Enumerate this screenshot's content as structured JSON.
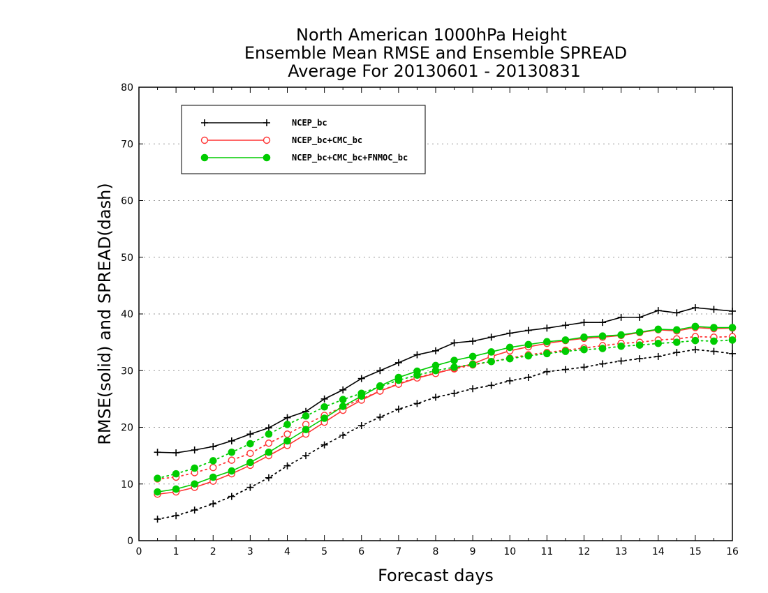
{
  "chart_data": {
    "type": "line",
    "title_lines": [
      "North American 1000hPa Height",
      "Ensemble Mean RMSE and Ensemble SPREAD",
      "Average For 20130601 - 20130831"
    ],
    "xlabel": "Forecast days",
    "ylabel": "RMSE(solid) and SPREAD(dash)",
    "xlim": [
      0,
      16
    ],
    "ylim": [
      0,
      80
    ],
    "xticks": [
      0,
      1,
      2,
      3,
      4,
      5,
      6,
      7,
      8,
      9,
      10,
      11,
      12,
      13,
      14,
      15,
      16
    ],
    "yticks": [
      0,
      10,
      20,
      30,
      40,
      50,
      60,
      70,
      80
    ],
    "grid": "horizontal dotted",
    "legend_position": "top-left",
    "x": [
      0.5,
      1,
      1.5,
      2,
      2.5,
      3,
      3.5,
      4,
      4.5,
      5,
      5.5,
      6,
      6.5,
      7,
      7.5,
      8,
      8.5,
      9,
      9.5,
      10,
      10.5,
      11,
      11.5,
      12,
      12.5,
      13,
      13.5,
      14,
      14.5,
      15,
      15.5,
      16
    ],
    "series": [
      {
        "name": "NCEP_bc",
        "color": "#000000",
        "marker": "plus",
        "rmse": [
          15.6,
          15.5,
          16.0,
          16.6,
          17.6,
          18.8,
          19.9,
          21.7,
          22.8,
          25.0,
          26.6,
          28.6,
          30.0,
          31.4,
          32.8,
          33.5,
          34.9,
          35.2,
          35.9,
          36.6,
          37.1,
          37.5,
          38.0,
          38.5,
          38.5,
          39.4,
          39.4,
          40.6,
          40.2,
          41.1,
          40.8,
          40.5
        ],
        "spread": [
          3.8,
          4.4,
          5.4,
          6.5,
          7.8,
          9.4,
          11.1,
          13.2,
          15.0,
          16.9,
          18.6,
          20.3,
          21.8,
          23.2,
          24.2,
          25.3,
          26.0,
          26.8,
          27.4,
          28.2,
          28.8,
          29.8,
          30.2,
          30.6,
          31.2,
          31.7,
          32.1,
          32.5,
          33.2,
          33.7,
          33.4,
          33.0
        ]
      },
      {
        "name": "NCEP_bc+CMC_bc",
        "color": "#ff3333",
        "marker": "open-circle",
        "rmse": [
          8.2,
          8.6,
          9.4,
          10.5,
          11.8,
          13.3,
          15.0,
          16.8,
          18.8,
          20.9,
          23.0,
          24.8,
          26.4,
          27.6,
          28.7,
          29.5,
          30.4,
          31.2,
          32.5,
          33.5,
          34.2,
          34.8,
          35.3,
          35.7,
          35.9,
          36.2,
          36.7,
          37.2,
          37.0,
          37.6,
          37.4,
          37.5
        ],
        "spread": [
          10.9,
          11.2,
          12.0,
          12.9,
          14.2,
          15.4,
          17.2,
          18.8,
          20.5,
          22.1,
          23.6,
          25.0,
          26.4,
          27.7,
          28.8,
          29.6,
          30.3,
          31.0,
          31.6,
          32.2,
          32.8,
          33.2,
          33.6,
          34.0,
          34.4,
          34.8,
          35.0,
          35.4,
          35.6,
          36.0,
          35.9,
          36.0
        ]
      },
      {
        "name": "NCEP_bc+CMC_bc+FNMOC_bc",
        "color": "#00cc00",
        "marker": "filled-circle",
        "rmse": [
          8.6,
          9.1,
          10.0,
          11.2,
          12.3,
          13.8,
          15.6,
          17.6,
          19.6,
          21.6,
          23.7,
          25.5,
          27.3,
          28.8,
          29.9,
          30.9,
          31.8,
          32.5,
          33.3,
          34.1,
          34.6,
          35.1,
          35.4,
          35.9,
          36.1,
          36.3,
          36.8,
          37.3,
          37.2,
          37.8,
          37.6,
          37.6
        ],
        "spread": [
          11.0,
          11.8,
          12.8,
          14.1,
          15.6,
          17.1,
          18.8,
          20.5,
          22.0,
          23.6,
          24.9,
          26.0,
          27.2,
          28.3,
          29.2,
          30.0,
          30.6,
          31.1,
          31.6,
          32.1,
          32.6,
          33.0,
          33.4,
          33.7,
          33.9,
          34.3,
          34.5,
          34.8,
          35.0,
          35.3,
          35.2,
          35.4
        ]
      }
    ]
  }
}
